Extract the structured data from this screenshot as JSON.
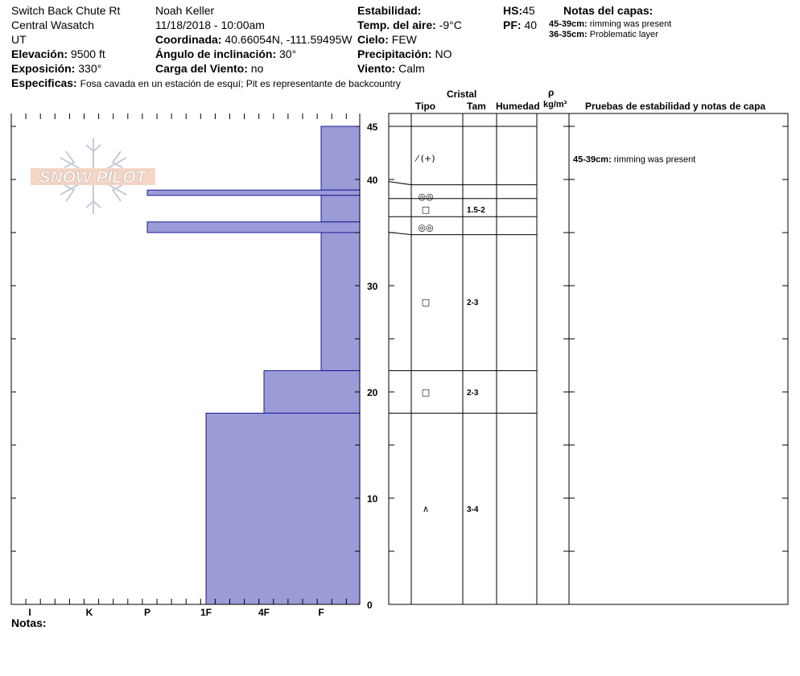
{
  "header": {
    "route": "Switch Back Chute Rt",
    "range": "Central Wasatch",
    "state": "UT",
    "elevation_label": "Elevación:",
    "elevation_value": "9500 ft",
    "aspect_label": "Exposición:",
    "aspect_value": "330°",
    "specifics_label": "Especificas:",
    "specifics_value": "Fosa cavada en un estación de esquí; Pit es representante de backcountry",
    "observer": "Noah Keller",
    "datetime": "11/18/2018 - 10:00am",
    "coord_label": "Coordinada:",
    "coord_value": "40.66054N, -111.59495W",
    "slope_label": "Ángulo de inclinación:",
    "slope_value": "30°",
    "wind_load_label": "Carga del Viento:",
    "wind_load_value": "no",
    "stability_label": "Estabilidad:",
    "air_temp_label": "Temp. del aire:",
    "air_temp_value": "-9°C",
    "sky_label": "Cielo:",
    "sky_value": "FEW",
    "precip_label": "Precipitación:",
    "precip_value": "NO",
    "wind_label": "Viento:",
    "wind_value": "Calm",
    "hs_label": "HS:",
    "hs_value": "45",
    "pf_label": "PF:",
    "pf_value": "40",
    "layer_notes_title": "Notas del capas:",
    "layer_notes": [
      {
        "range": "45-39cm:",
        "text": "rimming was present"
      },
      {
        "range": "36-35cm:",
        "text": "Problematic layer"
      }
    ]
  },
  "logo": {
    "text": "SNOW PILOT"
  },
  "columns": {
    "crystal": "Cristal",
    "type": "Tipo",
    "size": "Tam",
    "moisture": "Humedad",
    "rho": "ρ",
    "density_unit": "kg/m³",
    "tests": "Pruebas de estabilidad y notas de capa"
  },
  "footer": {
    "notes_label": "Notas:"
  },
  "colors": {
    "fill": "#9b9bd7",
    "stroke": "#1a1a9a"
  },
  "chart_data": {
    "type": "bar",
    "orientation": "horizontal",
    "x_categories": [
      "I",
      "K",
      "P",
      "1F",
      "4F",
      "F"
    ],
    "ylim": [
      0,
      45
    ],
    "y_ticks": [
      0,
      10,
      20,
      30,
      40,
      45
    ],
    "layers": [
      {
        "top": 45,
        "bottom": 39,
        "hardness_index": 5
      },
      {
        "top": 39,
        "bottom": 38.5,
        "hardness_index": 2
      },
      {
        "top": 38.5,
        "bottom": 36,
        "hardness_index": 5
      },
      {
        "top": 36,
        "bottom": 35,
        "hardness_index": 2
      },
      {
        "top": 35,
        "bottom": 22,
        "hardness_index": 5
      },
      {
        "top": 22,
        "bottom": 18,
        "hardness_index": 4
      },
      {
        "top": 18,
        "bottom": 0,
        "hardness_index": 3
      }
    ],
    "profile_lines": [
      45,
      39.5,
      38.2,
      36.5,
      34.8,
      22,
      18
    ],
    "crystals": [
      {
        "depth": 42,
        "symbol": "⁄ (+)",
        "size": ""
      },
      {
        "depth": 38.4,
        "symbol": "◎◎",
        "size": ""
      },
      {
        "depth": 37.2,
        "symbol": "□",
        "size": "1.5-2"
      },
      {
        "depth": 35.5,
        "symbol": "◎◎",
        "size": ""
      },
      {
        "depth": 28.5,
        "symbol": "□",
        "size": "2-3"
      },
      {
        "depth": 20,
        "symbol": "□",
        "size": "2-3"
      },
      {
        "depth": 9,
        "symbol": "∧",
        "size": "3-4"
      }
    ],
    "test_notes": [
      {
        "depth": 42,
        "range": "45-39cm:",
        "text": "rimming was present"
      }
    ]
  }
}
